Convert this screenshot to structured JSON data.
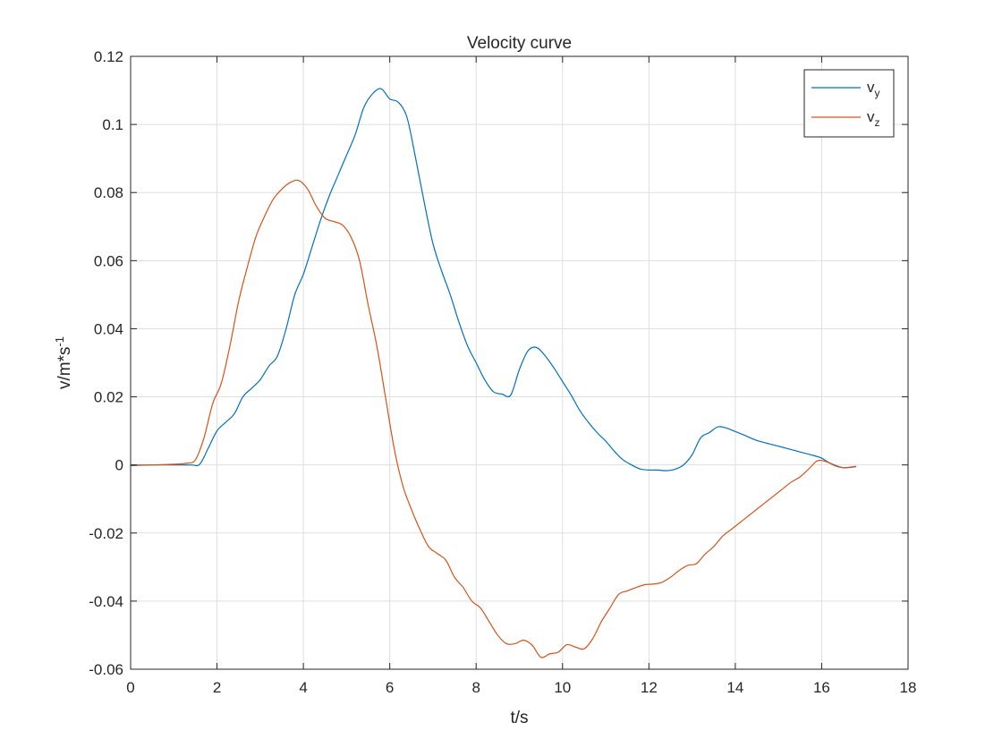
{
  "chart_data": {
    "type": "line",
    "title": "Velocity curve",
    "xlabel": "t/s",
    "ylabel": "v/m*s",
    "ylabel_superscript": "-1",
    "xlim": [
      0,
      18
    ],
    "ylim": [
      -0.06,
      0.12
    ],
    "x_ticks": [
      0,
      2,
      4,
      6,
      8,
      10,
      12,
      14,
      16,
      18
    ],
    "x_tick_labels": [
      "0",
      "2",
      "4",
      "6",
      "8",
      "10",
      "12",
      "14",
      "16",
      "18"
    ],
    "y_ticks": [
      -0.06,
      -0.04,
      -0.02,
      0,
      0.02,
      0.04,
      0.06,
      0.08,
      0.1,
      0.12
    ],
    "y_tick_labels": [
      "-0.06",
      "-0.04",
      "-0.02",
      "0",
      "0.02",
      "0.04",
      "0.06",
      "0.08",
      "0.1",
      "0.12"
    ],
    "grid": true,
    "legend_position": "top-right",
    "series": [
      {
        "name": "v",
        "name_subscript": "y",
        "color": "#0072BD",
        "x": [
          0,
          0.5,
          1.0,
          1.4,
          1.6,
          1.8,
          2.0,
          2.2,
          2.4,
          2.6,
          2.8,
          3.0,
          3.2,
          3.4,
          3.6,
          3.8,
          4.0,
          4.2,
          4.4,
          4.6,
          4.8,
          5.0,
          5.2,
          5.4,
          5.6,
          5.8,
          6.0,
          6.2,
          6.4,
          6.6,
          6.8,
          7.0,
          7.2,
          7.4,
          7.6,
          7.8,
          8.0,
          8.2,
          8.4,
          8.6,
          8.8,
          9.0,
          9.2,
          9.4,
          9.6,
          9.8,
          10.0,
          10.2,
          10.4,
          10.6,
          10.8,
          11.0,
          11.2,
          11.4,
          11.6,
          11.8,
          12.0,
          12.2,
          12.4,
          12.6,
          12.8,
          13.0,
          13.2,
          13.4,
          13.6,
          13.8,
          14.0,
          14.2,
          14.5,
          15.0,
          15.3,
          15.5,
          15.8,
          16.0,
          16.2,
          16.5,
          16.8
        ],
        "y": [
          -0.0002,
          0,
          0,
          0,
          0.0002,
          0.005,
          0.01,
          0.0125,
          0.015,
          0.02,
          0.0225,
          0.025,
          0.029,
          0.032,
          0.04,
          0.05,
          0.056,
          0.064,
          0.072,
          0.079,
          0.085,
          0.091,
          0.097,
          0.105,
          0.109,
          0.1105,
          0.1075,
          0.1065,
          0.102,
          0.09,
          0.077,
          0.065,
          0.057,
          0.05,
          0.042,
          0.035,
          0.03,
          0.025,
          0.0215,
          0.0208,
          0.0205,
          0.028,
          0.0335,
          0.0345,
          0.032,
          0.0285,
          0.0245,
          0.0205,
          0.016,
          0.0125,
          0.0095,
          0.007,
          0.004,
          0.0015,
          0,
          -0.0012,
          -0.0015,
          -0.0015,
          -0.0017,
          -0.0013,
          0,
          0.003,
          0.008,
          0.0095,
          0.0112,
          0.0108,
          0.0098,
          0.0088,
          0.0072,
          0.0055,
          0.0045,
          0.0038,
          0.0028,
          0.002,
          0.0005,
          -0.0008,
          -0.0005
        ]
      },
      {
        "name": "v",
        "name_subscript": "z",
        "color": "#D95319",
        "x": [
          0,
          0.5,
          1.0,
          1.3,
          1.5,
          1.7,
          1.9,
          2.1,
          2.3,
          2.5,
          2.7,
          2.9,
          3.1,
          3.3,
          3.5,
          3.7,
          3.9,
          4.1,
          4.3,
          4.5,
          4.7,
          4.9,
          5.1,
          5.3,
          5.5,
          5.7,
          5.9,
          6.1,
          6.3,
          6.5,
          6.7,
          6.9,
          7.1,
          7.3,
          7.5,
          7.7,
          7.9,
          8.1,
          8.3,
          8.5,
          8.7,
          8.9,
          9.1,
          9.3,
          9.5,
          9.7,
          9.9,
          10.1,
          10.3,
          10.5,
          10.7,
          10.9,
          11.1,
          11.3,
          11.5,
          11.7,
          11.9,
          12.1,
          12.3,
          12.5,
          12.7,
          12.9,
          13.1,
          13.3,
          13.5,
          13.7,
          13.9,
          14.1,
          14.3,
          14.5,
          14.7,
          14.9,
          15.1,
          15.3,
          15.5,
          15.7,
          15.9,
          16.1,
          16.3,
          16.5,
          16.8
        ],
        "y": [
          0,
          0,
          0.0002,
          0.0005,
          0.0015,
          0.008,
          0.018,
          0.024,
          0.035,
          0.048,
          0.058,
          0.067,
          0.073,
          0.078,
          0.081,
          0.083,
          0.0835,
          0.081,
          0.076,
          0.0725,
          0.0715,
          0.0705,
          0.067,
          0.06,
          0.047,
          0.035,
          0.02,
          0.005,
          -0.006,
          -0.013,
          -0.019,
          -0.024,
          -0.026,
          -0.028,
          -0.033,
          -0.036,
          -0.04,
          -0.042,
          -0.046,
          -0.05,
          -0.0525,
          -0.0525,
          -0.0515,
          -0.053,
          -0.0565,
          -0.0555,
          -0.055,
          -0.0528,
          -0.0535,
          -0.054,
          -0.051,
          -0.046,
          -0.042,
          -0.038,
          -0.037,
          -0.036,
          -0.0352,
          -0.035,
          -0.0345,
          -0.033,
          -0.031,
          -0.0295,
          -0.029,
          -0.0262,
          -0.024,
          -0.021,
          -0.019,
          -0.017,
          -0.015,
          -0.013,
          -0.011,
          -0.009,
          -0.007,
          -0.005,
          -0.0035,
          -0.0012,
          0.0012,
          0.001,
          -0.0002,
          -0.0008,
          -0.0004
        ]
      }
    ]
  }
}
